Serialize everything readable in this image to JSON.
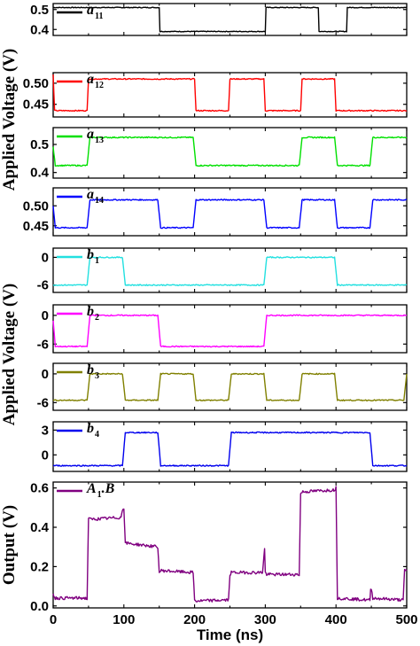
{
  "chart_data": {
    "type": "line",
    "xlabel": "Time (ns)",
    "xlim": [
      0,
      500
    ],
    "xticks": [
      "0",
      "100",
      "200",
      "300",
      "400",
      "500"
    ],
    "ylabels": [
      "Applied Voltage (V)",
      "Applied Voltage (V)",
      "Output (V)"
    ],
    "panels": [
      {
        "legend": "a",
        "legend_sub": "11",
        "color": "#000000",
        "ylim": [
          0.37,
          0.53
        ],
        "yticks": [
          0.4,
          0.5
        ],
        "ytick_labels": [
          "0.4",
          "0.5"
        ],
        "x": [
          0,
          150,
          151,
          300,
          301,
          375,
          376,
          415,
          416,
          500
        ],
        "y": [
          0.51,
          0.51,
          0.39,
          0.39,
          0.51,
          0.51,
          0.39,
          0.39,
          0.51,
          0.51
        ]
      },
      {
        "legend": "a",
        "legend_sub": "12",
        "color": "#ff0000",
        "ylim": [
          0.42,
          0.525
        ],
        "yticks": [
          0.45,
          0.5
        ],
        "ytick_labels": [
          "0.45",
          "0.50"
        ],
        "x": [
          0,
          2,
          10,
          48,
          50,
          200,
          202,
          248,
          250,
          298,
          300,
          350,
          352,
          398,
          400,
          500
        ],
        "y": [
          0.52,
          0.435,
          0.435,
          0.435,
          0.51,
          0.51,
          0.435,
          0.435,
          0.51,
          0.51,
          0.435,
          0.435,
          0.51,
          0.51,
          0.435,
          0.435
        ]
      },
      {
        "legend": "a",
        "legend_sub": "13",
        "color": "#00e000",
        "ylim": [
          0.38,
          0.56
        ],
        "yticks": [
          0.4,
          0.5
        ],
        "ytick_labels": [
          "0.4",
          "0.5"
        ],
        "x": [
          0,
          3,
          10,
          48,
          52,
          198,
          202,
          348,
          352,
          398,
          402,
          448,
          452,
          500
        ],
        "y": [
          0.49,
          0.425,
          0.425,
          0.425,
          0.525,
          0.525,
          0.425,
          0.425,
          0.525,
          0.525,
          0.425,
          0.425,
          0.525,
          0.525
        ]
      },
      {
        "legend": "a",
        "legend_sub": "14",
        "color": "#0000ff",
        "ylim": [
          0.425,
          0.545
        ],
        "yticks": [
          0.45,
          0.5
        ],
        "ytick_labels": [
          "0.45",
          "0.50"
        ],
        "x": [
          0,
          3,
          10,
          48,
          52,
          148,
          152,
          198,
          202,
          298,
          302,
          348,
          352,
          398,
          402,
          448,
          452,
          500
        ],
        "y": [
          0.5,
          0.445,
          0.445,
          0.445,
          0.515,
          0.515,
          0.445,
          0.445,
          0.515,
          0.515,
          0.445,
          0.445,
          0.515,
          0.515,
          0.445,
          0.445,
          0.515,
          0.515
        ]
      },
      {
        "legend": "b",
        "legend_sub": "1",
        "color": "#22e0e0",
        "ylim": [
          -7.6,
          2.0
        ],
        "yticks": [
          -6,
          0
        ],
        "ytick_labels": [
          "-6",
          "0"
        ],
        "x": [
          0,
          48,
          52,
          98,
          102,
          298,
          302,
          398,
          402,
          500
        ],
        "y": [
          -6,
          -6,
          0,
          0,
          -6,
          -6,
          0,
          0,
          -6,
          -6
        ]
      },
      {
        "legend": "b",
        "legend_sub": "2",
        "color": "#ff00ff",
        "ylim": [
          -7.8,
          2.2
        ],
        "yticks": [
          -6,
          0
        ],
        "ytick_labels": [
          "-6",
          "0"
        ],
        "x": [
          0,
          3,
          10,
          48,
          52,
          148,
          152,
          298,
          302,
          500
        ],
        "y": [
          -1,
          -6.5,
          -6.5,
          -6.5,
          0,
          0,
          -6.5,
          -6.5,
          0,
          0
        ]
      },
      {
        "legend": "b",
        "legend_sub": "3",
        "color": "#808000",
        "ylim": [
          -7.6,
          2.2
        ],
        "yticks": [
          -6,
          0
        ],
        "ytick_labels": [
          "-6",
          "0"
        ],
        "x": [
          0,
          48,
          52,
          98,
          102,
          148,
          152,
          198,
          202,
          248,
          252,
          298,
          302,
          348,
          352,
          398,
          402,
          448,
          452,
          496,
          500
        ],
        "y": [
          -5.5,
          -5.5,
          0,
          0,
          -5.5,
          -5.5,
          0,
          0,
          -5.5,
          -5.5,
          0,
          0,
          -5.5,
          -5.5,
          0,
          0,
          -5.5,
          -5.5,
          -5.5,
          -5.5,
          0
        ]
      },
      {
        "legend": "b",
        "legend_sub": "4",
        "color": "#0000ee",
        "ylim": [
          -2.0,
          4.0
        ],
        "yticks": [
          0,
          3
        ],
        "ytick_labels": [
          "0",
          "3"
        ],
        "x": [
          0,
          98,
          102,
          148,
          152,
          248,
          252,
          448,
          452,
          500
        ],
        "y": [
          -1.3,
          -1.3,
          2.7,
          2.7,
          -1.3,
          -1.3,
          2.7,
          2.7,
          -1.3,
          -1.3
        ]
      },
      {
        "legend": "A",
        "legend_sub": "1",
        "legend_after": ".B",
        "color": "#800080",
        "ylim": [
          -0.01,
          0.63
        ],
        "yticks": [
          0.0,
          0.2,
          0.4,
          0.6
        ],
        "ytick_labels": [
          "0.0",
          "0.2",
          "0.4",
          "0.6"
        ],
        "x": [
          0,
          3,
          45,
          48,
          50,
          52,
          96,
          98,
          100,
          102,
          148,
          150,
          152,
          198,
          200,
          202,
          245,
          248,
          250,
          252,
          296,
          298,
          299,
          300,
          302,
          345,
          348,
          350,
          352,
          396,
          398,
          400,
          402,
          446,
          448,
          449,
          450,
          452,
          495,
          497,
          500
        ],
        "y": [
          0.06,
          0.04,
          0.04,
          0.035,
          0.45,
          0.44,
          0.45,
          0.49,
          0.5,
          0.32,
          0.3,
          0.17,
          0.18,
          0.17,
          0.03,
          0.025,
          0.03,
          0.03,
          0.16,
          0.17,
          0.17,
          0.25,
          0.29,
          0.17,
          0.16,
          0.16,
          0.16,
          0.57,
          0.58,
          0.59,
          0.59,
          0.6,
          0.04,
          0.03,
          0.03,
          0.08,
          0.09,
          0.04,
          0.03,
          0.18,
          0.18
        ]
      }
    ]
  }
}
